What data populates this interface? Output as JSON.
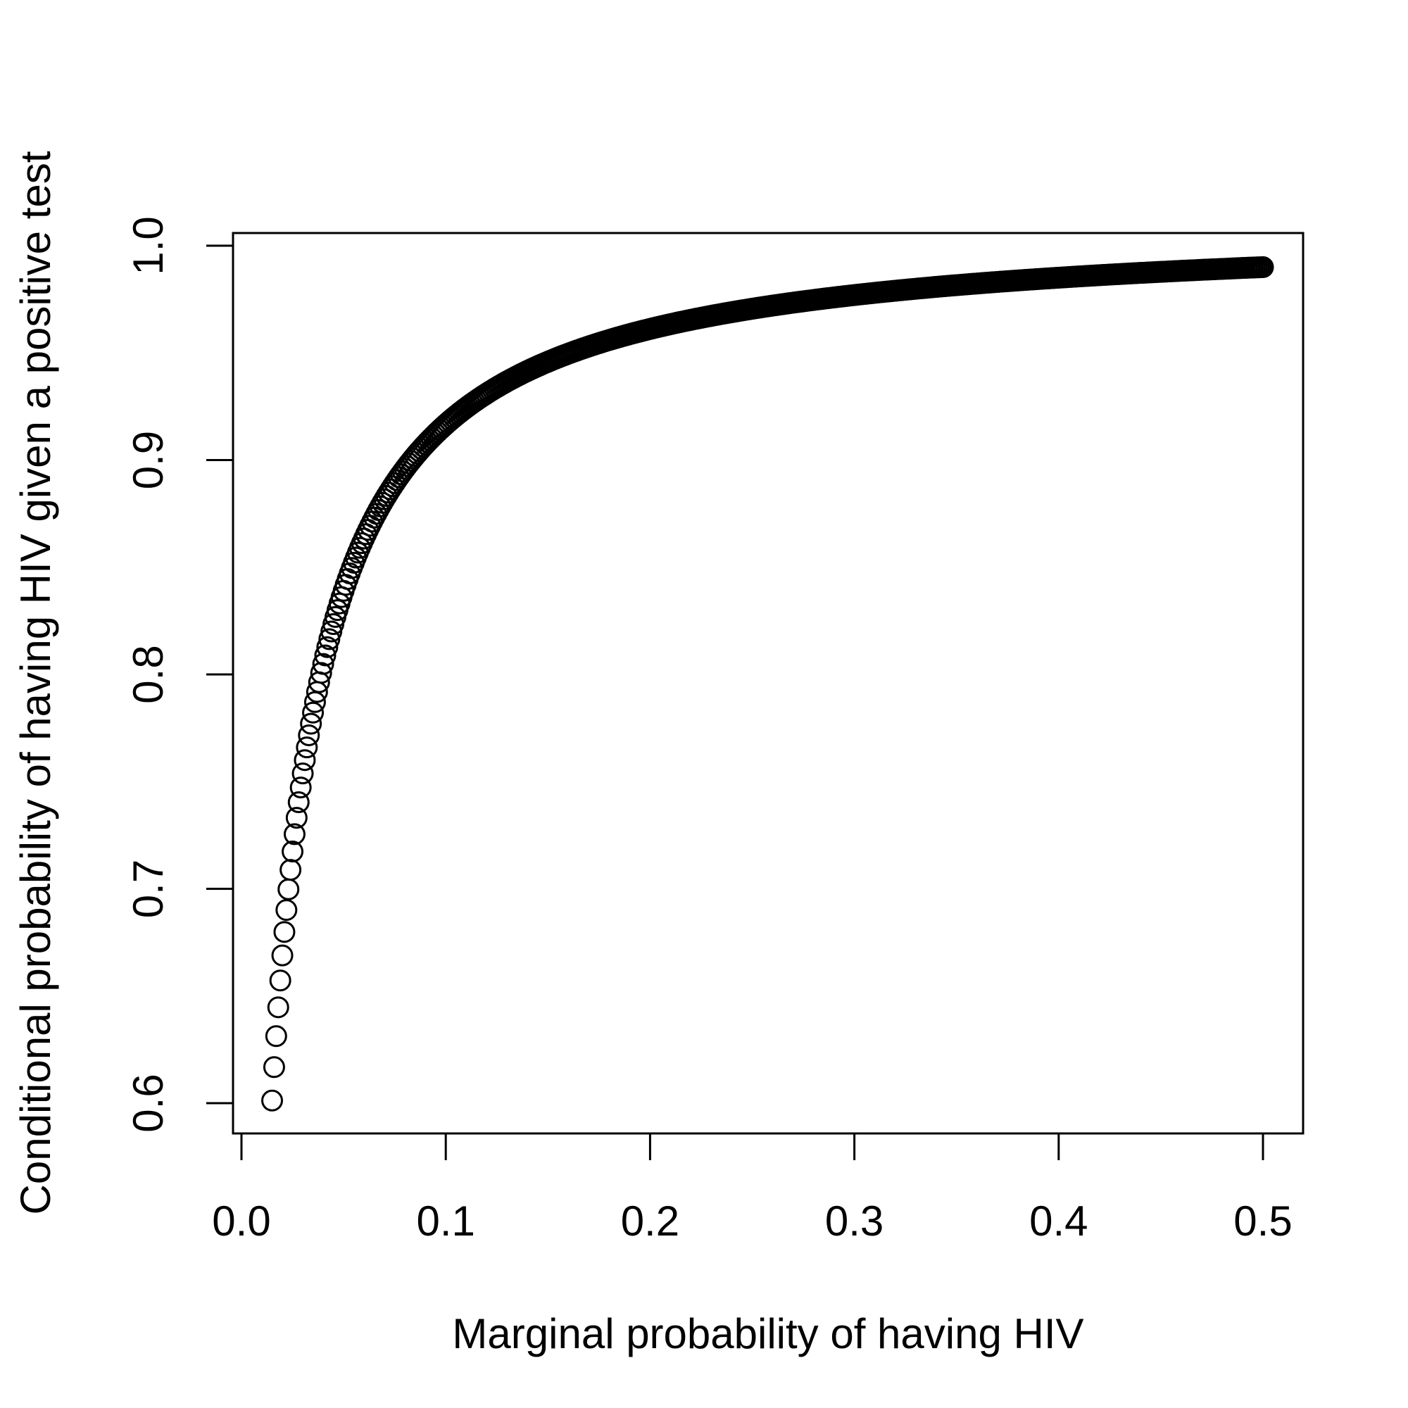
{
  "chart_data": {
    "type": "scatter",
    "title": "",
    "xlabel": "Marginal probability of having HIV",
    "ylabel": "Conditional probability of having HIV given a positive test",
    "xlim": [
      0.0,
      0.5
    ],
    "ylim": [
      0.6,
      1.0
    ],
    "xticks": [
      "0.0",
      "0.1",
      "0.2",
      "0.3",
      "0.4",
      "0.5"
    ],
    "yticks": [
      "0.6",
      "0.7",
      "0.8",
      "0.9",
      "1.0"
    ],
    "marker": "open-circle",
    "grid": false,
    "legend": "none",
    "series": [
      {
        "x_start": 0.015,
        "x_end": 0.5,
        "x_step": 0.001,
        "sensitivity": 0.99,
        "false_positive_rate": 0.01
      }
    ]
  },
  "colors": {
    "background": "#ffffff",
    "ink": "#000000"
  }
}
